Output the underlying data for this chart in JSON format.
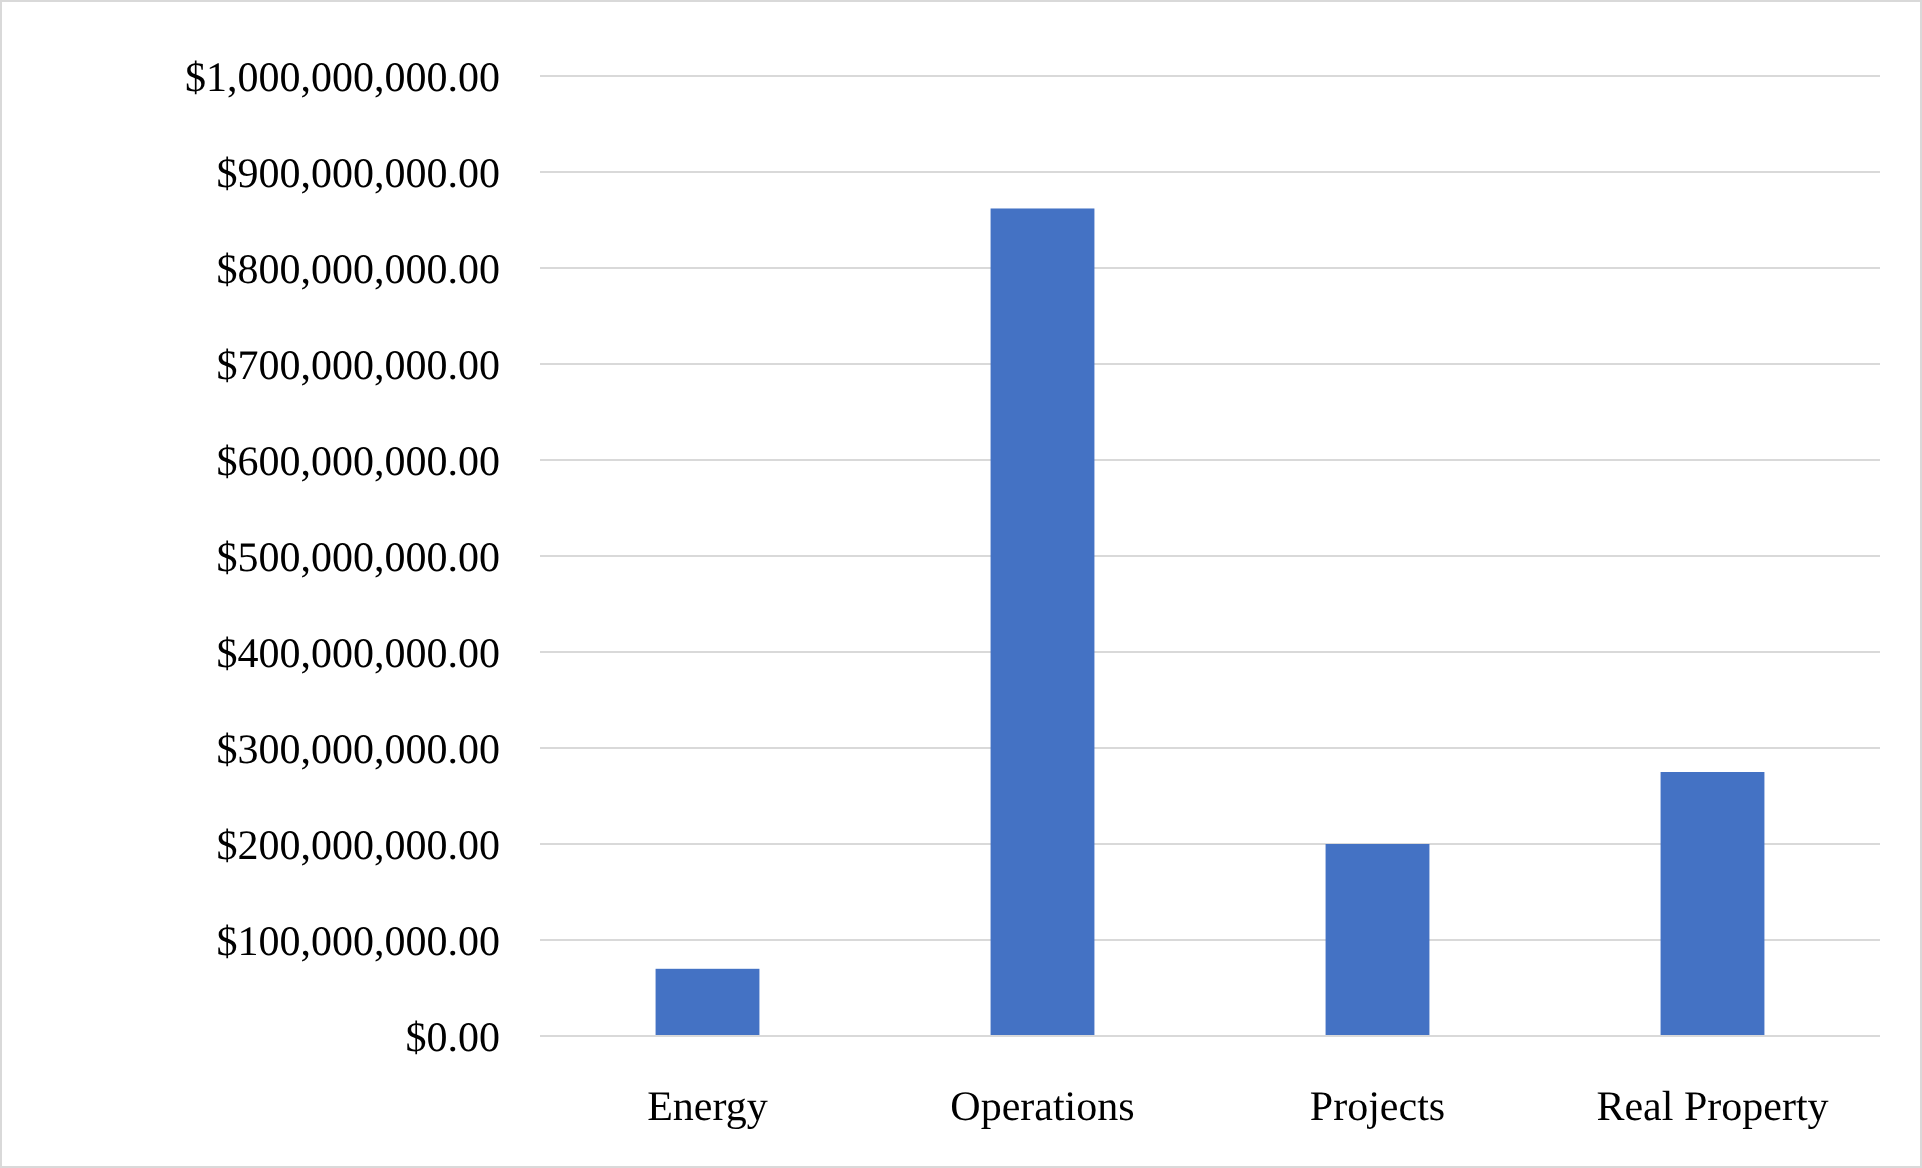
{
  "chart_data": {
    "type": "bar",
    "categories": [
      "Energy",
      "Operations",
      "Projects",
      "Real Property"
    ],
    "values": [
      70000000,
      862000000,
      200000000,
      275000000
    ],
    "color": "#4472c4",
    "ylim": [
      0,
      1000000000
    ],
    "yticks": [
      {
        "value": 0,
        "label": "$0.00"
      },
      {
        "value": 100000000,
        "label": "$100,000,000.00"
      },
      {
        "value": 200000000,
        "label": "$200,000,000.00"
      },
      {
        "value": 300000000,
        "label": "$300,000,000.00"
      },
      {
        "value": 400000000,
        "label": "$400,000,000.00"
      },
      {
        "value": 500000000,
        "label": "$500,000,000.00"
      },
      {
        "value": 600000000,
        "label": "$600,000,000.00"
      },
      {
        "value": 700000000,
        "label": "$700,000,000.00"
      },
      {
        "value": 800000000,
        "label": "$800,000,000.00"
      },
      {
        "value": 900000000,
        "label": "$900,000,000.00"
      },
      {
        "value": 1000000000,
        "label": "$1,000,000,000.00"
      }
    ],
    "grid": "y"
  }
}
